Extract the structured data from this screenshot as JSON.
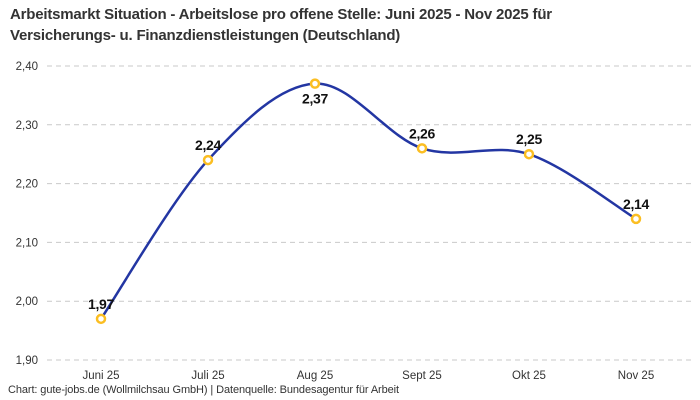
{
  "title": {
    "line1": "Arbeitsmarkt Situation - Arbeitslose pro offene Stelle: Juni 2025 - Nov 2025 für",
    "line2": "Versicherungs- u. Finanzdienstleistungen (Deutschland)"
  },
  "footer": "Chart: gute-jobs.de (Wollmilchsau GmbH) | Datenquelle: Bundesagentur für Arbeit",
  "chart_data": {
    "type": "line",
    "title": "Arbeitsmarkt Situation - Arbeitslose pro offene Stelle: Juni 2025 - Nov 2025 für Versicherungs- u. Finanzdienstleistungen (Deutschland)",
    "categories": [
      "Juni 25",
      "Juli 25",
      "Aug 25",
      "Sept 25",
      "Okt 25",
      "Nov 25"
    ],
    "values": [
      1.97,
      2.24,
      2.37,
      2.26,
      2.25,
      2.14
    ],
    "value_labels": [
      "1,97",
      "2,24",
      "2,37",
      "2,26",
      "2,25",
      "2,14"
    ],
    "label_positions": [
      "above",
      "above",
      "below",
      "above",
      "above",
      "above"
    ],
    "y_tick_labels": [
      "1,90",
      "2,00",
      "2,10",
      "2,20",
      "2,30",
      "2,40"
    ],
    "y_tick_values": [
      1.9,
      2.0,
      2.1,
      2.2,
      2.3,
      2.4
    ],
    "ylim": [
      1.9,
      2.4
    ],
    "xlabel": "",
    "ylabel": "",
    "legend": "none",
    "grid": "horizontal-dashed",
    "line_style": "smooth",
    "colors": {
      "line": "#2336A3",
      "marker_stroke": "#FBBE22",
      "marker_fill": "#ffffff",
      "grid": "#c9c9c9",
      "axis_text": "#333333",
      "label_text": "#111111"
    }
  }
}
